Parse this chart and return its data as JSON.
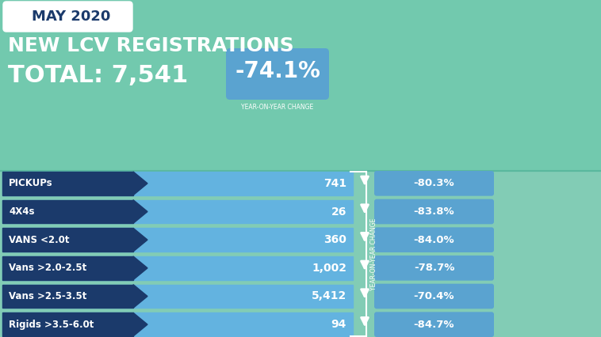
{
  "title_month": "MAY 2020",
  "header_line1": "NEW LCV REGISTRATIONS",
  "header_line2": "TOTAL: 7,541",
  "total_change": "-74.1%",
  "year_on_year_label": "YEAR-ON-YEAR CHANGE",
  "bg_color_top": "#72c9ae",
  "bg_color_bottom": "#82ccb5",
  "dark_navy": "#1b3a6b",
  "light_blue_bar": "#63b3e0",
  "medium_blue_box": "#5aa3d0",
  "white": "#ffffff",
  "categories": [
    "PICKUPs",
    "4X4s",
    "VANS <2.0t",
    "Vans >2.0-2.5t",
    "Vans >2.5-3.5t",
    "Rigids >3.5-6.0t"
  ],
  "values": [
    "741",
    "26",
    "360",
    "1,002",
    "5,412",
    "94"
  ],
  "changes": [
    "-80.3%",
    "-83.8%",
    "-84.0%",
    "-78.7%",
    "-70.4%",
    "-84.7%"
  ]
}
